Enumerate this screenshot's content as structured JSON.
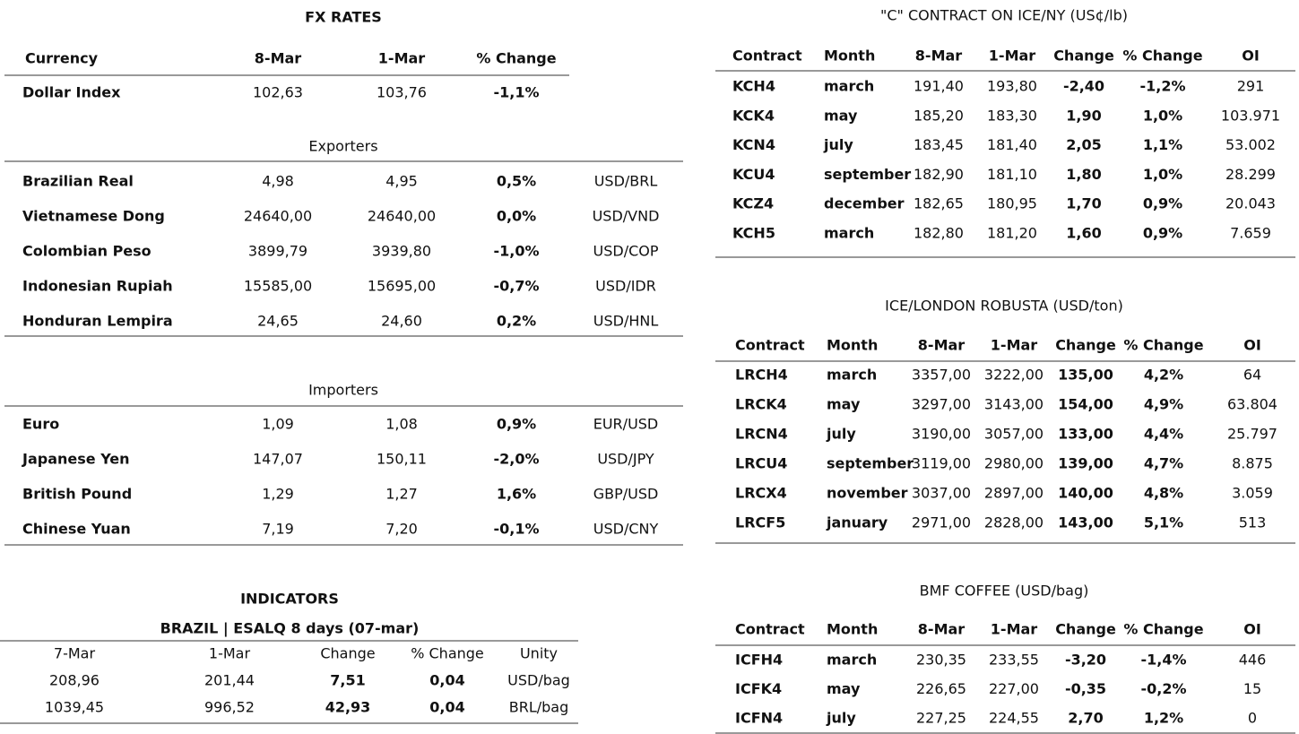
{
  "fx": {
    "title": "FX RATES",
    "headers": [
      "Currency",
      "8-Mar",
      "1-Mar",
      "% Change"
    ],
    "dollar": [
      "Dollar Index",
      "102,63",
      "103,76",
      "-1,1%"
    ],
    "exporters": {
      "title": "Exporters",
      "rows": [
        [
          "Brazilian Real",
          "4,98",
          "4,95",
          "0,5%",
          "USD/BRL"
        ],
        [
          "Vietnamese Dong",
          "24640,00",
          "24640,00",
          "0,0%",
          "USD/VND"
        ],
        [
          "Colombian Peso",
          "3899,79",
          "3939,80",
          "-1,0%",
          "USD/COP"
        ],
        [
          "Indonesian Rupiah",
          "15585,00",
          "15695,00",
          "-0,7%",
          "USD/IDR"
        ],
        [
          "Honduran Lempira",
          "24,65",
          "24,60",
          "0,2%",
          "USD/HNL"
        ]
      ]
    },
    "importers": {
      "title": "Importers",
      "rows": [
        [
          "Euro",
          "1,09",
          "1,08",
          "0,9%",
          "EUR/USD"
        ],
        [
          "Japanese Yen",
          "147,07",
          "150,11",
          "-2,0%",
          "USD/JPY"
        ],
        [
          "British Pound",
          "1,29",
          "1,27",
          "1,6%",
          "GBP/USD"
        ],
        [
          "Chinese Yuan",
          "7,19",
          "7,20",
          "-0,1%",
          "USD/CNY"
        ]
      ]
    }
  },
  "indicators": {
    "title": "INDICATORS",
    "subtitle": "BRAZIL | ESALQ 8 days (07-mar)",
    "headers": [
      "7-Mar",
      "1-Mar",
      "Change",
      "% Change",
      "Unity"
    ],
    "rows": [
      [
        "208,96",
        "201,44",
        "7,51",
        "0,04",
        "USD/bag"
      ],
      [
        "1039,45",
        "996,52",
        "42,93",
        "0,04",
        "BRL/bag"
      ]
    ]
  },
  "ice_ny": {
    "title": "\"C\" CONTRACT ON ICE/NY (US¢/lb)",
    "headers": [
      "Contract",
      "Month",
      "8-Mar",
      "1-Mar",
      "Change",
      "% Change",
      "OI"
    ],
    "rows": [
      [
        "KCH4",
        "march",
        "191,40",
        "193,80",
        "-2,40",
        "-1,2%",
        "291"
      ],
      [
        "KCK4",
        "may",
        "185,20",
        "183,30",
        "1,90",
        "1,0%",
        "103.971"
      ],
      [
        "KCN4",
        "july",
        "183,45",
        "181,40",
        "2,05",
        "1,1%",
        "53.002"
      ],
      [
        "KCU4",
        "september",
        "182,90",
        "181,10",
        "1,80",
        "1,0%",
        "28.299"
      ],
      [
        "KCZ4",
        "december",
        "182,65",
        "180,95",
        "1,70",
        "0,9%",
        "20.043"
      ],
      [
        "KCH5",
        "march",
        "182,80",
        "181,20",
        "1,60",
        "0,9%",
        "7.659"
      ]
    ]
  },
  "robusta": {
    "title": "ICE/LONDON ROBUSTA (USD/ton)",
    "headers": [
      "Contract",
      "Month",
      "8-Mar",
      "1-Mar",
      "Change",
      "% Change",
      "OI"
    ],
    "rows": [
      [
        "LRCH4",
        "march",
        "3357,00",
        "3222,00",
        "135,00",
        "4,2%",
        "64"
      ],
      [
        "LRCK4",
        "may",
        "3297,00",
        "3143,00",
        "154,00",
        "4,9%",
        "63.804"
      ],
      [
        "LRCN4",
        "july",
        "3190,00",
        "3057,00",
        "133,00",
        "4,4%",
        "25.797"
      ],
      [
        "LRCU4",
        "september",
        "3119,00",
        "2980,00",
        "139,00",
        "4,7%",
        "8.875"
      ],
      [
        "LRCX4",
        "november",
        "3037,00",
        "2897,00",
        "140,00",
        "4,8%",
        "3.059"
      ],
      [
        "LRCF5",
        "january",
        "2971,00",
        "2828,00",
        "143,00",
        "5,1%",
        "513"
      ]
    ]
  },
  "bmf": {
    "title": "BMF COFFEE (USD/bag)",
    "headers": [
      "Contract",
      "Month",
      "8-Mar",
      "1-Mar",
      "Change",
      "% Change",
      "OI"
    ],
    "rows": [
      [
        "ICFH4",
        "march",
        "230,35",
        "233,55",
        "-3,20",
        "-1,4%",
        "446"
      ],
      [
        "ICFK4",
        "may",
        "226,65",
        "227,00",
        "-0,35",
        "-0,2%",
        "15"
      ],
      [
        "ICFN4",
        "july",
        "227,25",
        "224,55",
        "2,70",
        "1,2%",
        "0"
      ]
    ]
  }
}
